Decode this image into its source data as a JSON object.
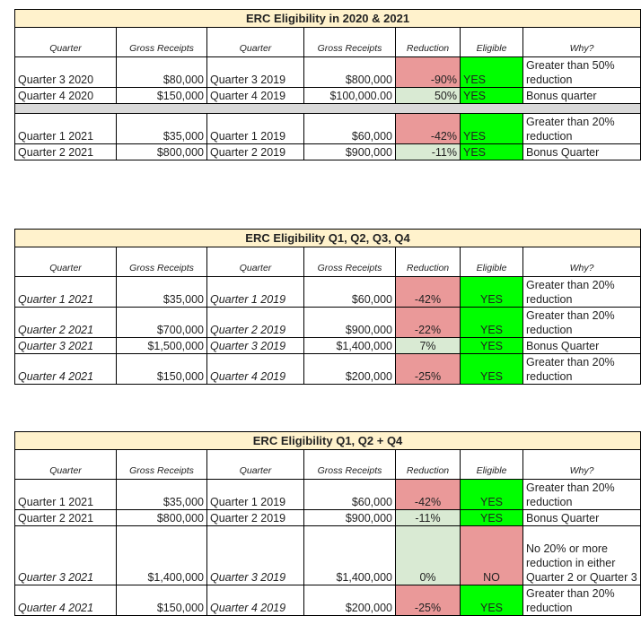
{
  "headers": {
    "quarter": "Quarter",
    "gross_receipts_wrapped": "Gross Receipts",
    "quarter_prior": "Quarter",
    "gross_receipts": "Gross Receipts",
    "reduction": "Reduction",
    "eligible": "Eligible",
    "why": "Why?"
  },
  "tables": [
    {
      "title": "ERC Eligibility in 2020 & 2021",
      "rows": [
        {
          "q": "Quarter 3 2020",
          "gr": "$80,000",
          "pq": "Quarter 3 2019",
          "pgr": "$800,000",
          "red": "-90%",
          "elig": "YES",
          "why": "Greater than 50% reduction"
        },
        {
          "q": "Quarter 4 2020",
          "gr": "$150,000",
          "pq": "Quarter 4 2019",
          "pgr": "$100,000.00",
          "red": "50%",
          "elig": "YES",
          "why": "Bonus quarter"
        },
        {
          "q": "Quarter 1 2021",
          "gr": "$35,000",
          "pq": "Quarter 1 2019",
          "pgr": "$60,000",
          "red": "-42%",
          "elig": "YES",
          "why": "Greater than 20% reduction"
        },
        {
          "q": "Quarter 2 2021",
          "gr": "$800,000",
          "pq": "Quarter 2 2019",
          "pgr": "$900,000",
          "red": "-11%",
          "elig": "YES",
          "why": "Bonus Quarter"
        }
      ]
    },
    {
      "title": "ERC Eligibility Q1, Q2, Q3, Q4",
      "rows": [
        {
          "q": "Quarter 1 2021",
          "gr": "$35,000",
          "pq": "Quarter 1 2019",
          "pgr": "$60,000",
          "red": "-42%",
          "elig": "YES",
          "why": "Greater than 20% reduction"
        },
        {
          "q": "Quarter 2 2021",
          "gr": "$700,000",
          "pq": "Quarter 2 2019",
          "pgr": "$900,000",
          "red": "-22%",
          "elig": "YES",
          "why": "Greater than 20% reduction"
        },
        {
          "q": "Quarter 3 2021",
          "gr": "$1,500,000",
          "pq": "Quarter 3 2019",
          "pgr": "$1,400,000",
          "red": "7%",
          "elig": "YES",
          "why": "Bonus Quarter"
        },
        {
          "q": "Quarter 4 2021",
          "gr": "$150,000",
          "pq": "Quarter 4 2019",
          "pgr": "$200,000",
          "red": "-25%",
          "elig": "YES",
          "why": "Greater than 20% reduction"
        }
      ]
    },
    {
      "title": "ERC Eligibility Q1, Q2 + Q4",
      "rows": [
        {
          "q": "Quarter 1 2021",
          "gr": "$35,000",
          "pq": "Quarter 1 2019",
          "pgr": "$60,000",
          "red": "-42%",
          "elig": "YES",
          "why": "Greater than 20% reduction"
        },
        {
          "q": "Quarter 2 2021",
          "gr": "$800,000",
          "pq": "Quarter 2 2019",
          "pgr": "$900,000",
          "red": "-11%",
          "elig": "YES",
          "why": "Bonus Quarter"
        },
        {
          "q": "Quarter 3 2021",
          "gr": "$1,400,000",
          "pq": "Quarter 3 2019",
          "pgr": "$1,400,000",
          "red": "0%",
          "elig": "NO",
          "why": "No 20% or more reduction in either Quarter 2 or Quarter 3"
        },
        {
          "q": "Quarter 4 2021",
          "gr": "$150,000",
          "pq": "Quarter 4 2019",
          "pgr": "$200,000",
          "red": "-25%",
          "elig": "YES",
          "why": "Greater than 20% reduction"
        }
      ]
    }
  ],
  "colors": {
    "title_bg": "#fff2cc",
    "reduction_negative": "#ea9999",
    "reduction_positive": "#d9ead3",
    "eligible_yes": "#00ff00",
    "eligible_no": "#ea9999",
    "separator": "#d9d9d9"
  }
}
